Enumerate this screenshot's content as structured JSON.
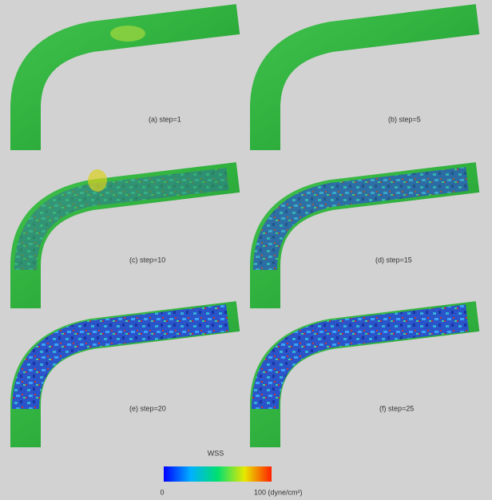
{
  "panels": [
    {
      "caption": "(a) step=1"
    },
    {
      "caption": "(b) step=5"
    },
    {
      "caption": "(c) step=10"
    },
    {
      "caption": "(d) step=15"
    },
    {
      "caption": "(e) step=20"
    },
    {
      "caption": "(f) step=25"
    }
  ],
  "colorbar": {
    "title": "WSS",
    "min": "0",
    "max": "100 (dyne/cm²)"
  }
}
